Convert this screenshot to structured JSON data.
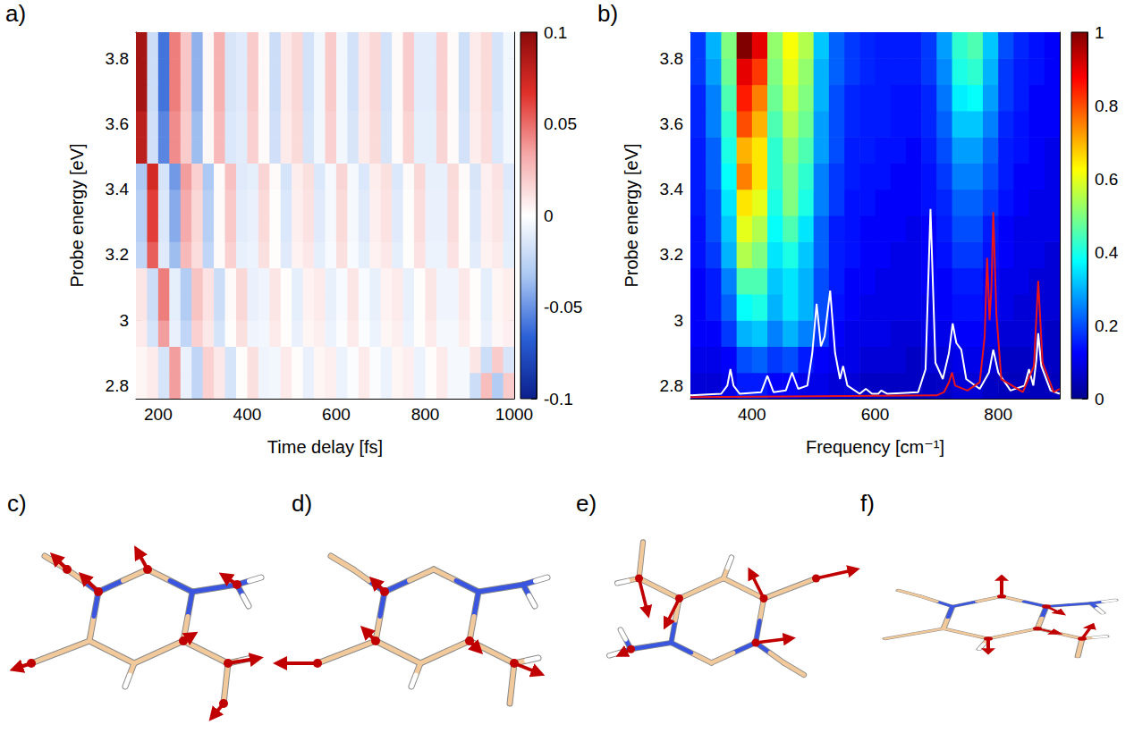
{
  "chart_data": [
    {
      "type": "heatmap",
      "panel": "a)",
      "x_label": "Time delay [fs]",
      "y_label": "Probe energy [eV]",
      "xlim": [
        150,
        1000
      ],
      "xticks": [
        200,
        400,
        600,
        800,
        1000
      ],
      "ylim": [
        2.76,
        3.88
      ],
      "yticks": [
        2.8,
        3,
        3.2,
        3.4,
        3.6,
        3.8
      ],
      "x": [
        162.5,
        187.5,
        212.5,
        237.5,
        262.5,
        287.5,
        312.5,
        337.5,
        362.5,
        387.5,
        412.5,
        437.5,
        462.5,
        487.5,
        512.5,
        537.5,
        562.5,
        587.5,
        612.5,
        637.5,
        662.5,
        687.5,
        712.5,
        737.5,
        762.5,
        787.5,
        812.5,
        837.5,
        862.5,
        887.5,
        912.5,
        937.5,
        962.5,
        987.5
      ],
      "y": [
        2.8,
        2.88,
        2.96,
        3.04,
        3.12,
        3.2,
        3.28,
        3.36,
        3.44,
        3.52,
        3.6,
        3.68,
        3.76,
        3.84
      ],
      "z": [
        [
          0.004,
          0.008,
          -0.016,
          0.036,
          -0.008,
          -0.024,
          0.018,
          0.009,
          -0.016,
          0.001,
          0.012,
          -0.006,
          -0.005,
          0.008,
          0.001,
          -0.008,
          0.004,
          0.006,
          -0.007,
          -0.002,
          0.008,
          -0.002,
          -0.007,
          0.004,
          0.006,
          -0.007,
          0.001,
          0.008,
          -0.004,
          -0.004,
          -0.02,
          0.025,
          -0.03,
          0.02
        ],
        [
          0.004,
          0.008,
          -0.016,
          0.036,
          -0.008,
          -0.024,
          0.018,
          0.009,
          -0.016,
          0.001,
          0.012,
          -0.006,
          -0.005,
          0.008,
          0.001,
          -0.008,
          0.004,
          0.006,
          -0.007,
          -0.002,
          0.008,
          -0.002,
          -0.007,
          0.004,
          0.006,
          -0.007,
          0.001,
          0.008,
          -0.004,
          -0.004,
          0.01,
          -0.02,
          0.02,
          -0.015
        ],
        [
          0.008,
          -0.016,
          0.036,
          -0.008,
          -0.024,
          0.018,
          0.009,
          -0.016,
          0.001,
          0.012,
          -0.006,
          -0.005,
          0.008,
          0.001,
          -0.008,
          0.004,
          0.006,
          -0.007,
          -0.002,
          0.008,
          -0.002,
          -0.007,
          0.004,
          0.006,
          -0.007,
          0.001,
          0.008,
          -0.004,
          -0.004,
          0.007,
          0.001,
          -0.008,
          0.003,
          0.006
        ],
        [
          0.01,
          -0.02,
          0.045,
          -0.01,
          -0.03,
          0.023,
          0.011,
          -0.02,
          0.002,
          0.015,
          -0.008,
          -0.006,
          0.01,
          0.001,
          -0.01,
          0.005,
          0.008,
          -0.009,
          -0.003,
          0.01,
          -0.003,
          -0.009,
          0.005,
          0.008,
          -0.009,
          0.001,
          0.01,
          -0.006,
          -0.006,
          0.009,
          0.001,
          -0.01,
          0.004,
          0.007
        ],
        [
          0.01,
          -0.02,
          0.045,
          -0.01,
          -0.03,
          0.023,
          0.011,
          -0.02,
          0.002,
          0.015,
          -0.008,
          -0.006,
          0.01,
          0.001,
          -0.01,
          0.005,
          0.008,
          -0.009,
          -0.003,
          0.01,
          -0.003,
          -0.009,
          0.005,
          0.008,
          -0.009,
          0.001,
          0.01,
          -0.006,
          -0.006,
          0.009,
          0.001,
          -0.01,
          0.004,
          0.007
        ],
        [
          -0.024,
          0.054,
          -0.012,
          -0.036,
          0.027,
          0.013,
          -0.024,
          0.002,
          0.018,
          -0.009,
          -0.007,
          0.012,
          0.001,
          -0.012,
          0.005,
          0.009,
          -0.01,
          -0.003,
          0.012,
          -0.003,
          -0.01,
          0.005,
          0.009,
          -0.01,
          0.001,
          0.011,
          -0.007,
          -0.007,
          0.011,
          0.001,
          -0.011,
          0.005,
          0.008,
          -0.01
        ],
        [
          -0.028,
          0.063,
          -0.014,
          -0.042,
          0.032,
          0.015,
          -0.028,
          0.002,
          0.021,
          -0.011,
          -0.008,
          0.014,
          0.001,
          -0.014,
          0.006,
          0.011,
          -0.012,
          -0.004,
          0.014,
          -0.004,
          -0.012,
          0.006,
          0.011,
          -0.012,
          0.001,
          0.013,
          -0.008,
          -0.008,
          0.013,
          0.001,
          -0.013,
          0.006,
          0.01,
          -0.011
        ],
        [
          -0.028,
          0.063,
          -0.014,
          -0.042,
          0.032,
          0.015,
          -0.028,
          0.002,
          0.021,
          -0.011,
          -0.008,
          0.014,
          0.001,
          -0.014,
          0.006,
          0.011,
          -0.012,
          -0.004,
          0.014,
          -0.004,
          -0.012,
          0.006,
          0.011,
          -0.012,
          0.001,
          0.013,
          -0.008,
          -0.008,
          0.013,
          0.001,
          -0.013,
          0.006,
          0.01,
          -0.011
        ],
        [
          -0.032,
          0.072,
          -0.016,
          -0.048,
          0.036,
          0.018,
          -0.032,
          0.002,
          0.024,
          -0.012,
          -0.01,
          0.016,
          0.002,
          -0.016,
          0.007,
          0.012,
          -0.014,
          -0.004,
          0.016,
          -0.004,
          -0.014,
          0.007,
          0.012,
          -0.014,
          0.002,
          0.015,
          -0.009,
          -0.009,
          0.014,
          0.002,
          -0.015,
          0.006,
          0.011,
          -0.013
        ],
        [
          0.081,
          -0.018,
          -0.054,
          0.041,
          0.02,
          -0.036,
          0.003,
          0.027,
          -0.014,
          -0.011,
          0.018,
          0.002,
          -0.018,
          0.008,
          0.014,
          -0.015,
          -0.005,
          0.018,
          -0.005,
          -0.015,
          0.008,
          0.014,
          -0.015,
          0.002,
          0.017,
          -0.01,
          -0.01,
          0.016,
          0.002,
          -0.017,
          0.007,
          0.013,
          -0.014,
          -0.005
        ],
        [
          0.081,
          -0.018,
          -0.054,
          0.041,
          0.02,
          -0.036,
          0.003,
          0.027,
          -0.014,
          -0.011,
          0.018,
          0.002,
          -0.018,
          0.008,
          0.014,
          -0.015,
          -0.005,
          0.018,
          -0.005,
          -0.015,
          0.008,
          0.014,
          -0.015,
          0.002,
          0.017,
          -0.01,
          -0.01,
          0.016,
          0.002,
          -0.017,
          0.007,
          0.013,
          -0.014,
          -0.005
        ],
        [
          0.09,
          -0.02,
          -0.06,
          0.045,
          0.022,
          -0.04,
          0.003,
          0.03,
          -0.015,
          -0.012,
          0.02,
          0.002,
          -0.02,
          0.009,
          0.015,
          -0.017,
          -0.005,
          0.02,
          -0.005,
          -0.017,
          0.009,
          0.015,
          -0.017,
          0.002,
          0.019,
          -0.011,
          -0.011,
          0.018,
          0.002,
          -0.019,
          0.008,
          0.014,
          -0.016,
          -0.005
        ],
        [
          0.09,
          -0.02,
          -0.06,
          0.045,
          0.022,
          -0.04,
          0.003,
          0.03,
          -0.015,
          -0.012,
          0.02,
          0.002,
          -0.02,
          0.009,
          0.015,
          -0.017,
          -0.005,
          0.02,
          -0.005,
          -0.017,
          0.009,
          0.015,
          -0.017,
          0.002,
          0.019,
          -0.011,
          -0.011,
          0.018,
          0.002,
          -0.019,
          0.008,
          0.014,
          -0.016,
          -0.005
        ],
        [
          0.09,
          -0.02,
          -0.06,
          0.045,
          0.022,
          -0.04,
          0.003,
          0.03,
          -0.015,
          -0.012,
          0.02,
          0.002,
          -0.02,
          0.009,
          0.015,
          -0.017,
          -0.005,
          0.02,
          -0.005,
          -0.017,
          0.009,
          0.015,
          -0.017,
          0.002,
          0.019,
          -0.011,
          -0.011,
          0.018,
          0.002,
          -0.019,
          0.008,
          0.014,
          -0.016,
          -0.005
        ]
      ],
      "colorbar": {
        "range": [
          -0.1,
          0.1
        ],
        "ticks": [
          -0.1,
          -0.05,
          0,
          0.05,
          0.1
        ]
      }
    },
    {
      "type": "heatmap",
      "panel": "b)",
      "x_label": "Frequency [cm⁻¹]",
      "y_label": "Probe energy [eV]",
      "xlim": [
        300,
        900
      ],
      "xticks": [
        400,
        600,
        800
      ],
      "ylim": [
        2.76,
        3.88
      ],
      "yticks": [
        2.8,
        3,
        3.2,
        3.4,
        3.6,
        3.8
      ],
      "x": [
        312.5,
        337.5,
        362.5,
        387.5,
        412.5,
        437.5,
        462.5,
        487.5,
        512.5,
        537.5,
        562.5,
        587.5,
        612.5,
        637.5,
        662.5,
        687.5,
        712.5,
        737.5,
        762.5,
        787.5,
        812.5,
        837.5,
        862.5,
        887.5
      ],
      "y": [
        2.8,
        2.88,
        2.96,
        3.04,
        3.12,
        3.2,
        3.28,
        3.36,
        3.44,
        3.52,
        3.6,
        3.68,
        3.76,
        3.84
      ],
      "z": [
        [
          0.08,
          0.08,
          0.1,
          0.15,
          0.15,
          0.12,
          0.12,
          0.1,
          0.1,
          0.08,
          0.08,
          0.06,
          0.06,
          0.06,
          0.06,
          0.06,
          0.06,
          0.08,
          0.08,
          0.06,
          0.05,
          0.05,
          0.05,
          0.05
        ],
        [
          0.1,
          0.1,
          0.12,
          0.2,
          0.22,
          0.18,
          0.2,
          0.15,
          0.12,
          0.1,
          0.1,
          0.08,
          0.08,
          0.08,
          0.06,
          0.08,
          0.08,
          0.1,
          0.1,
          0.08,
          0.06,
          0.06,
          0.06,
          0.06
        ],
        [
          0.12,
          0.12,
          0.18,
          0.3,
          0.32,
          0.25,
          0.3,
          0.25,
          0.18,
          0.12,
          0.1,
          0.1,
          0.1,
          0.08,
          0.08,
          0.1,
          0.1,
          0.12,
          0.12,
          0.1,
          0.08,
          0.08,
          0.08,
          0.06
        ],
        [
          0.12,
          0.15,
          0.22,
          0.38,
          0.4,
          0.3,
          0.35,
          0.3,
          0.2,
          0.14,
          0.12,
          0.1,
          0.1,
          0.1,
          0.1,
          0.1,
          0.12,
          0.14,
          0.14,
          0.12,
          0.1,
          0.08,
          0.08,
          0.08
        ],
        [
          0.12,
          0.15,
          0.25,
          0.45,
          0.45,
          0.32,
          0.35,
          0.3,
          0.2,
          0.15,
          0.12,
          0.12,
          0.1,
          0.1,
          0.1,
          0.12,
          0.12,
          0.15,
          0.15,
          0.12,
          0.1,
          0.1,
          0.08,
          0.08
        ],
        [
          0.14,
          0.18,
          0.3,
          0.55,
          0.5,
          0.35,
          0.4,
          0.32,
          0.22,
          0.15,
          0.14,
          0.12,
          0.12,
          0.1,
          0.1,
          0.12,
          0.14,
          0.18,
          0.18,
          0.14,
          0.12,
          0.1,
          0.1,
          0.08
        ],
        [
          0.14,
          0.2,
          0.32,
          0.6,
          0.55,
          0.38,
          0.45,
          0.35,
          0.22,
          0.15,
          0.14,
          0.12,
          0.12,
          0.12,
          0.1,
          0.12,
          0.15,
          0.2,
          0.2,
          0.15,
          0.12,
          0.1,
          0.1,
          0.1
        ],
        [
          0.15,
          0.2,
          0.35,
          0.65,
          0.6,
          0.4,
          0.5,
          0.4,
          0.25,
          0.18,
          0.14,
          0.14,
          0.12,
          0.12,
          0.12,
          0.14,
          0.16,
          0.22,
          0.22,
          0.18,
          0.14,
          0.12,
          0.1,
          0.1
        ],
        [
          0.15,
          0.22,
          0.38,
          0.75,
          0.65,
          0.42,
          0.5,
          0.42,
          0.25,
          0.18,
          0.15,
          0.14,
          0.14,
          0.12,
          0.12,
          0.14,
          0.18,
          0.25,
          0.25,
          0.2,
          0.15,
          0.12,
          0.12,
          0.1
        ],
        [
          0.15,
          0.22,
          0.4,
          0.7,
          0.65,
          0.42,
          0.52,
          0.45,
          0.28,
          0.2,
          0.15,
          0.15,
          0.14,
          0.14,
          0.12,
          0.15,
          0.2,
          0.28,
          0.28,
          0.22,
          0.15,
          0.14,
          0.12,
          0.1
        ],
        [
          0.16,
          0.25,
          0.42,
          0.8,
          0.7,
          0.45,
          0.55,
          0.48,
          0.28,
          0.2,
          0.16,
          0.15,
          0.15,
          0.14,
          0.14,
          0.16,
          0.22,
          0.32,
          0.32,
          0.25,
          0.16,
          0.14,
          0.12,
          0.12
        ],
        [
          0.16,
          0.25,
          0.45,
          0.85,
          0.75,
          0.48,
          0.58,
          0.5,
          0.3,
          0.2,
          0.16,
          0.15,
          0.15,
          0.14,
          0.14,
          0.16,
          0.24,
          0.36,
          0.38,
          0.28,
          0.18,
          0.15,
          0.12,
          0.12
        ],
        [
          0.18,
          0.28,
          0.48,
          0.9,
          0.82,
          0.5,
          0.6,
          0.52,
          0.3,
          0.22,
          0.18,
          0.16,
          0.15,
          0.15,
          0.15,
          0.18,
          0.26,
          0.4,
          0.42,
          0.3,
          0.18,
          0.15,
          0.14,
          0.12
        ],
        [
          0.18,
          0.3,
          0.5,
          1,
          0.9,
          0.52,
          0.62,
          0.55,
          0.32,
          0.22,
          0.18,
          0.16,
          0.15,
          0.15,
          0.15,
          0.18,
          0.28,
          0.42,
          0.45,
          0.32,
          0.2,
          0.16,
          0.14,
          0.12
        ]
      ],
      "colorbar": {
        "range": [
          0,
          1
        ],
        "ticks": [
          0,
          0.2,
          0.4,
          0.6,
          0.8,
          1
        ]
      },
      "series": [
        {
          "type": "line",
          "color": "#ffffff",
          "x": [
            300,
            350,
            360,
            365,
            370,
            380,
            415,
            425,
            435,
            455,
            465,
            475,
            490,
            498,
            505,
            512,
            518,
            527,
            535,
            543,
            548,
            555,
            575,
            585,
            595,
            605,
            610,
            620,
            670,
            682,
            690,
            698,
            710,
            720,
            726,
            732,
            740,
            748,
            770,
            785,
            792,
            800,
            820,
            843,
            850,
            857,
            862,
            865,
            870,
            885,
            900
          ],
          "values": [
            2.77,
            2.775,
            2.8,
            2.85,
            2.8,
            2.775,
            2.78,
            2.83,
            2.78,
            2.785,
            2.84,
            2.79,
            2.8,
            2.9,
            3.05,
            2.92,
            2.95,
            3.09,
            2.9,
            2.82,
            2.86,
            2.8,
            2.775,
            2.79,
            2.775,
            2.775,
            2.785,
            2.775,
            2.78,
            2.85,
            3.34,
            2.87,
            2.82,
            2.9,
            2.99,
            2.93,
            2.91,
            2.82,
            2.79,
            2.84,
            2.91,
            2.84,
            2.785,
            2.8,
            2.85,
            2.8,
            2.88,
            2.96,
            2.86,
            2.785,
            2.775
          ]
        },
        {
          "type": "line",
          "color": "#e8151b",
          "x": [
            300,
            700,
            712,
            720,
            725,
            730,
            750,
            770,
            778,
            782,
            786,
            789,
            792,
            797,
            805,
            840,
            858,
            865,
            872,
            890,
            900
          ],
          "values": [
            2.765,
            2.77,
            2.78,
            2.81,
            2.84,
            2.8,
            2.785,
            2.81,
            2.95,
            3.19,
            3,
            3.1,
            3.33,
            3.02,
            2.82,
            2.78,
            2.86,
            3.12,
            2.87,
            2.78,
            2.79
          ]
        }
      ]
    }
  ],
  "diagrams": [
    {
      "panel": "c)"
    },
    {
      "panel": "d)"
    },
    {
      "panel": "e)"
    },
    {
      "panel": "f)"
    }
  ]
}
